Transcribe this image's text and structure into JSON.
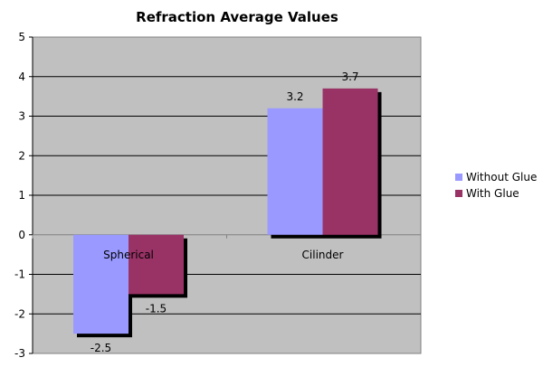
{
  "chart_data": {
    "type": "bar",
    "title": "Refraction Average Values",
    "categories": [
      "Spherical",
      "Cilinder"
    ],
    "series": [
      {
        "name": "Without Glue",
        "values": [
          -2.5,
          3.2
        ],
        "color": "#9999ff"
      },
      {
        "name": "With Glue",
        "values": [
          -1.5,
          3.7
        ],
        "color": "#993366"
      }
    ],
    "data_labels": [
      [
        "-2.5",
        "3.2"
      ],
      [
        "-1.5",
        "3.7"
      ]
    ],
    "ylim": [
      -3,
      5
    ],
    "yticks": [
      5,
      4,
      3,
      2,
      1,
      0,
      -1,
      -2,
      -3
    ],
    "xlabel": "",
    "ylabel": "",
    "grid": true,
    "legend_position": "right",
    "plot_background": "#c0c0c0"
  }
}
